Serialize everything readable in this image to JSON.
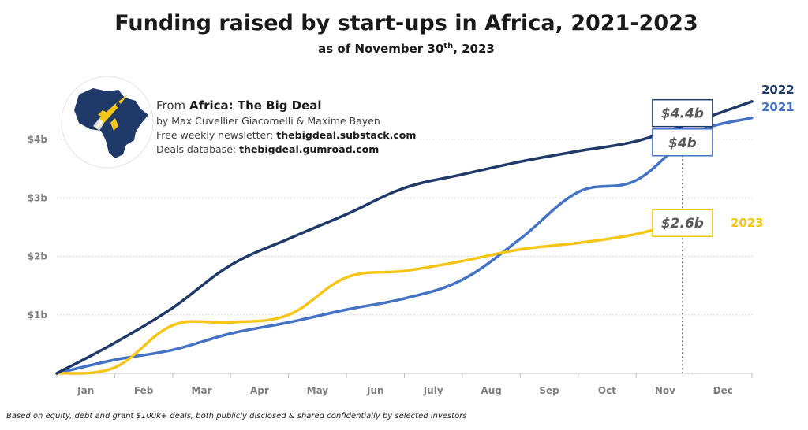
{
  "header": {
    "title": "Funding raised by start-ups in Africa, 2021-2023",
    "subtitle_pre": "as of November 30",
    "subtitle_sup": "th",
    "subtitle_post": ", 2023"
  },
  "source": {
    "from_label": "From ",
    "from_name": "Africa: The Big Deal",
    "authors": "by Max Cuvellier Giacomelli & Maxime Bayen",
    "newsletter_label": "Free weekly newsletter: ",
    "newsletter_url": "thebigdeal.substack.com",
    "database_label": "Deals database: ",
    "database_url": "thebigdeal.gumroad.com"
  },
  "footnote": "Based on equity, debt and grant $100k+ deals, both publicly disclosed & shared confidentially by selected investors",
  "logo": {
    "icon": "africa-rocket-icon",
    "map_color": "#1f3a68",
    "rocket_color": "#f5c518"
  },
  "chart_data": {
    "type": "line",
    "categories": [
      "Jan",
      "Feb",
      "Mar",
      "Apr",
      "May",
      "Jun",
      "July",
      "Aug",
      "Sep",
      "Oct",
      "Nov",
      "Dec"
    ],
    "x_positions": [
      0,
      1,
      2,
      3,
      4,
      5,
      6,
      7,
      8,
      9,
      10,
      11,
      12
    ],
    "ylim": [
      0,
      5.2
    ],
    "yticks": [
      {
        "value": 1,
        "label": "$1b"
      },
      {
        "value": 2,
        "label": "$2b"
      },
      {
        "value": 3,
        "label": "$3b"
      },
      {
        "value": 4,
        "label": "$4b"
      }
    ],
    "grid": true,
    "reference_line": {
      "x": 10.8,
      "style": "dotted"
    },
    "series": [
      {
        "name": "2022",
        "color": "#1f3a68",
        "x": [
          0,
          1,
          2,
          3,
          4,
          5,
          6,
          7,
          8,
          9,
          10,
          11,
          12
        ],
        "values": [
          0,
          0.52,
          1.12,
          1.85,
          2.3,
          2.72,
          3.17,
          3.4,
          3.62,
          3.8,
          3.97,
          4.3,
          4.65
        ],
        "callout": "$4.4b"
      },
      {
        "name": "2021",
        "color": "#4472c4",
        "x": [
          0,
          1,
          2,
          3,
          4,
          5,
          6,
          7,
          8,
          9,
          10,
          11,
          12
        ],
        "values": [
          0,
          0.23,
          0.4,
          0.68,
          0.87,
          1.09,
          1.28,
          1.6,
          2.3,
          3.1,
          3.3,
          4.1,
          4.37
        ],
        "callout": "$4b"
      },
      {
        "name": "2023",
        "color": "#f5c518",
        "x": [
          0,
          1,
          2,
          3,
          4,
          5,
          6,
          7,
          8,
          9,
          10,
          10.8
        ],
        "values": [
          0,
          0.1,
          0.82,
          0.87,
          1.0,
          1.64,
          1.75,
          1.92,
          2.12,
          2.23,
          2.38,
          2.6
        ],
        "callout": "$2.6b"
      }
    ]
  }
}
